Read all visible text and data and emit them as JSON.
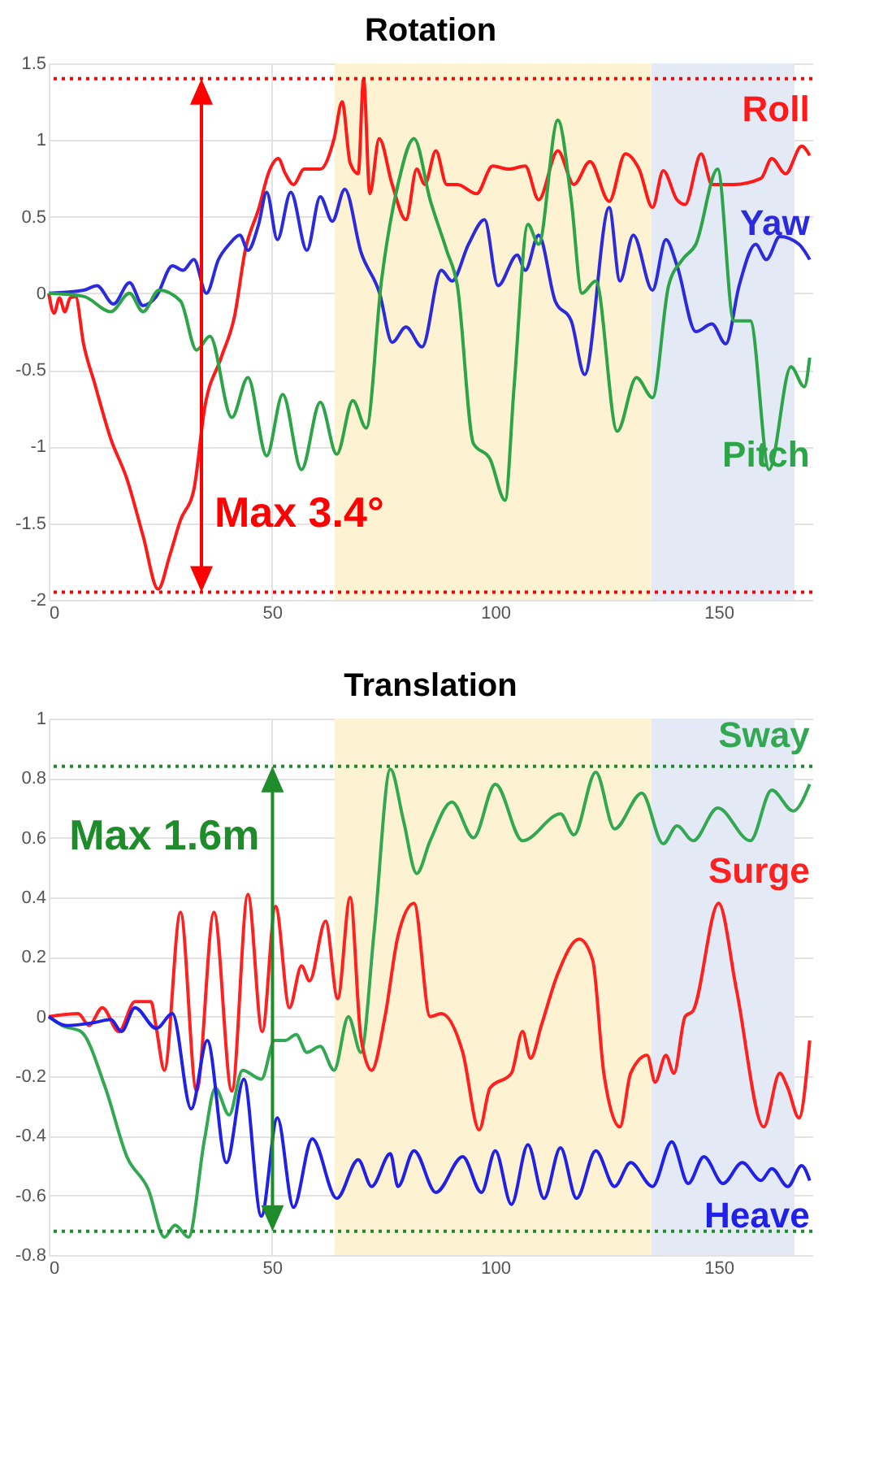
{
  "chart_data": [
    {
      "type": "line",
      "title": "Rotation",
      "xlim": [
        0,
        171
      ],
      "xticks": [
        0,
        50,
        100,
        150
      ],
      "ylim": [
        -2,
        1.5
      ],
      "yticks": [
        -2,
        -1.5,
        -1,
        -0.5,
        0,
        0.5,
        1,
        1.5
      ],
      "grid": true,
      "bands": [
        {
          "axis": "x",
          "from": 64,
          "to": 135,
          "color": "#fdf2d2"
        },
        {
          "axis": "x",
          "from": 135,
          "to": 167,
          "color": "#e3e9f5"
        }
      ],
      "ref_lines": [
        {
          "axis": "y",
          "value": 1.4,
          "color": "#ff0000",
          "line_style": "dotted"
        },
        {
          "axis": "y",
          "value": -1.95,
          "color": "#ff0000",
          "line_style": "dotted"
        }
      ],
      "annotations": [
        "Max 3.4°"
      ],
      "series": [
        {
          "name": "Roll",
          "color": "#ff1a1a",
          "x": [
            0,
            1.2,
            2.4,
            3.6,
            4.8,
            6,
            7.8,
            10.2,
            13.9,
            17.5,
            21.1,
            24.5,
            27.1,
            29.5,
            32.5,
            34.9,
            38.6,
            41.6,
            44,
            47,
            49.4,
            51.4,
            53,
            54.8,
            57.2,
            60.8,
            63.9,
            65.7,
            67.5,
            69.3,
            70.5,
            71.9,
            74,
            76.9,
            80,
            82.4,
            84.2,
            86.7,
            89.1,
            91.5,
            95.8,
            99.4,
            103,
            106.7,
            109.7,
            114,
            117.6,
            121.2,
            125.5,
            129.1,
            132.2,
            135.2,
            137.6,
            140.7,
            142.5,
            146.1,
            148.5,
            153.4,
            159.5,
            161.9,
            165,
            168.6,
            170.4
          ],
          "values": [
            0,
            -0.13,
            -0.03,
            -0.12,
            -0.03,
            -0.02,
            -0.33,
            -0.58,
            -0.95,
            -1.21,
            -1.58,
            -1.93,
            -1.71,
            -1.48,
            -1.28,
            -0.75,
            -0.42,
            -0.15,
            0.28,
            0.55,
            0.8,
            0.88,
            0.78,
            0.71,
            0.81,
            0.81,
            1.01,
            1.25,
            0.85,
            0.78,
            1.4,
            0.65,
            1.01,
            0.71,
            0.48,
            0.81,
            0.71,
            0.93,
            0.71,
            0.71,
            0.65,
            0.83,
            0.81,
            0.83,
            0.61,
            0.93,
            0.71,
            0.86,
            0.6,
            0.91,
            0.81,
            0.56,
            0.8,
            0.61,
            0.58,
            0.91,
            0.71,
            0.71,
            0.75,
            0.88,
            0.78,
            0.96,
            0.9
          ]
        },
        {
          "name": "Yaw",
          "color": "#2b2bdd",
          "x": [
            0,
            7.8,
            10.8,
            14.5,
            18.1,
            21.1,
            24.1,
            27.7,
            30.1,
            32.5,
            35.3,
            38,
            40.4,
            42.8,
            44.6,
            47,
            48.8,
            51.2,
            54.2,
            57.8,
            60.8,
            63.5,
            66.3,
            69.9,
            74.1,
            76.9,
            80,
            83.6,
            87.9,
            90.3,
            94,
            97.6,
            100.6,
            104.9,
            106.7,
            109.7,
            113.4,
            117,
            120,
            125.5,
            127.9,
            130.9,
            135.2,
            138.2,
            140.7,
            144.9,
            148.5,
            151.6,
            154.6,
            158.3,
            160.7,
            163.7,
            168,
            170.4
          ],
          "values": [
            0,
            0.02,
            0.05,
            -0.07,
            0.07,
            -0.08,
            -0.02,
            0.18,
            0.15,
            0.22,
            0,
            0.22,
            0.32,
            0.38,
            0.28,
            0.45,
            0.66,
            0.35,
            0.66,
            0.28,
            0.63,
            0.47,
            0.68,
            0.27,
            0,
            -0.32,
            -0.22,
            -0.35,
            0.15,
            0.08,
            0.32,
            0.48,
            0.05,
            0.25,
            0.15,
            0.38,
            -0.05,
            -0.18,
            -0.53,
            0.56,
            0.08,
            0.38,
            0.02,
            0.35,
            0.18,
            -0.25,
            -0.2,
            -0.33,
            0.05,
            0.32,
            0.22,
            0.37,
            0.32,
            0.22
          ]
        },
        {
          "name": "Pitch",
          "color": "#2ca448",
          "x": [
            0,
            7.8,
            13.9,
            18.1,
            21.1,
            24.7,
            29.5,
            33.1,
            36.1,
            41,
            44.6,
            48.8,
            52.4,
            56.6,
            60.8,
            64.5,
            68.1,
            71.1,
            74.5,
            78.2,
            81.8,
            85.4,
            89.1,
            91.5,
            95.1,
            98.8,
            102.2,
            104.2,
            107.3,
            109.7,
            114,
            117,
            119.4,
            122.5,
            127.3,
            131.6,
            135.2,
            138.8,
            141.9,
            144.9,
            149.8,
            153.4,
            157.1,
            161.3,
            166.2,
            169.2,
            170.4
          ],
          "values": [
            0,
            -0.02,
            -0.12,
            0,
            -0.12,
            0.02,
            -0.05,
            -0.37,
            -0.28,
            -0.81,
            -0.55,
            -1.06,
            -0.66,
            -1.15,
            -0.71,
            -1.05,
            -0.7,
            -0.88,
            0.08,
            0.71,
            1.01,
            0.61,
            0.28,
            0.05,
            -0.98,
            -1.08,
            -1.35,
            -0.61,
            0.45,
            0.32,
            1.13,
            0.61,
            0,
            0.08,
            -0.9,
            -0.55,
            -0.68,
            0.05,
            0.22,
            0.32,
            0.81,
            -0.18,
            -0.18,
            -1.15,
            -0.48,
            -0.61,
            -0.42
          ]
        }
      ]
    },
    {
      "type": "line",
      "title": "Translation",
      "xlim": [
        0,
        171
      ],
      "xticks": [
        0,
        50,
        100,
        150
      ],
      "ylim": [
        -0.8,
        1
      ],
      "yticks": [
        -0.8,
        -0.6,
        -0.4,
        -0.2,
        0,
        0.2,
        0.4,
        0.6,
        0.8,
        1
      ],
      "grid": true,
      "bands": [
        {
          "axis": "x",
          "from": 64,
          "to": 135,
          "color": "#fdf2d2"
        },
        {
          "axis": "x",
          "from": 135,
          "to": 167,
          "color": "#e3e9f5"
        }
      ],
      "ref_lines": [
        {
          "axis": "y",
          "value": 0.84,
          "color": "#1e8c2a",
          "line_style": "dotted"
        },
        {
          "axis": "y",
          "value": -0.72,
          "color": "#1e8c2a",
          "line_style": "dotted"
        }
      ],
      "annotations": [
        "Max 1.6m"
      ],
      "series": [
        {
          "name": "Sway",
          "color": "#33a853",
          "x": [
            0,
            3,
            7.2,
            12.7,
            17.5,
            22.3,
            25.9,
            28.3,
            31.3,
            34.9,
            37.3,
            40.4,
            43.4,
            47.6,
            50.6,
            53,
            55.4,
            57.8,
            60.8,
            63.9,
            67.1,
            69.9,
            72.9,
            76.5,
            79.4,
            82.4,
            85.4,
            90.3,
            95.1,
            100,
            106.1,
            114.6,
            117.6,
            122.5,
            126.7,
            132.8,
            137.6,
            140.7,
            144.3,
            149.8,
            157.1,
            161.9,
            166.7,
            170.4
          ],
          "values": [
            0,
            -0.03,
            -0.05,
            -0.24,
            -0.47,
            -0.58,
            -0.74,
            -0.7,
            -0.74,
            -0.41,
            -0.24,
            -0.33,
            -0.18,
            -0.21,
            -0.08,
            -0.08,
            -0.06,
            -0.12,
            -0.1,
            -0.18,
            0,
            -0.12,
            0.29,
            0.83,
            0.66,
            0.48,
            0.59,
            0.72,
            0.6,
            0.78,
            0.59,
            0.68,
            0.61,
            0.82,
            0.63,
            0.75,
            0.58,
            0.64,
            0.59,
            0.7,
            0.59,
            0.76,
            0.69,
            0.78
          ]
        },
        {
          "name": "Surge",
          "color": "#ff2020",
          "x": [
            0,
            6.6,
            9,
            12,
            15.7,
            19.3,
            22.9,
            24.1,
            25.9,
            29.5,
            33.1,
            37,
            41,
            44.6,
            47.8,
            50.8,
            53.9,
            56.6,
            58.4,
            62,
            64.7,
            67.5,
            69.9,
            72.3,
            75.3,
            78.2,
            81.8,
            85.4,
            87.9,
            92.7,
            96.4,
            98.8,
            103.6,
            106.1,
            107.9,
            110.3,
            113.9,
            118.8,
            121.8,
            124.3,
            127.9,
            130.3,
            134,
            135.8,
            138.2,
            140,
            142.5,
            144.3,
            150,
            154,
            160.1,
            163.7,
            165.5,
            168,
            170.4
          ],
          "values": [
            0,
            0.01,
            -0.03,
            0.03,
            -0.05,
            0.05,
            0.05,
            -0.04,
            -0.18,
            0.35,
            -0.25,
            0.35,
            -0.25,
            0.41,
            -0.05,
            0.37,
            0.03,
            0.17,
            0.12,
            0.32,
            0.06,
            0.4,
            -0.07,
            -0.18,
            0,
            0.27,
            0.38,
            0,
            0.01,
            -0.12,
            -0.38,
            -0.24,
            -0.19,
            -0.05,
            -0.14,
            -0.03,
            0.14,
            0.26,
            0.19,
            -0.19,
            -0.37,
            -0.19,
            -0.13,
            -0.22,
            -0.13,
            -0.19,
            0,
            0.02,
            0.38,
            0.09,
            -0.37,
            -0.19,
            -0.24,
            -0.34,
            -0.08
          ]
        },
        {
          "name": "Heave",
          "color": "#2020e6",
          "x": [
            0,
            4.2,
            10.2,
            13.9,
            16.3,
            19.3,
            24.1,
            27.7,
            31.9,
            35.5,
            39.8,
            43.7,
            47.6,
            51.2,
            54.8,
            59,
            64.5,
            69.3,
            72.3,
            76.5,
            78.2,
            81.8,
            86.7,
            92.7,
            96.9,
            100,
            103.6,
            107.3,
            110.9,
            114.6,
            118.2,
            122.5,
            126.7,
            130.3,
            135.2,
            139.5,
            143.2,
            146.7,
            151,
            155.3,
            159.5,
            161.9,
            165.5,
            168.6,
            170.4
          ],
          "values": [
            0,
            -0.03,
            -0.02,
            -0.01,
            -0.05,
            0.03,
            -0.04,
            0.01,
            -0.31,
            -0.08,
            -0.49,
            -0.21,
            -0.67,
            -0.34,
            -0.64,
            -0.41,
            -0.61,
            -0.48,
            -0.57,
            -0.46,
            -0.57,
            -0.45,
            -0.59,
            -0.47,
            -0.59,
            -0.45,
            -0.63,
            -0.43,
            -0.61,
            -0.44,
            -0.61,
            -0.45,
            -0.57,
            -0.49,
            -0.57,
            -0.42,
            -0.56,
            -0.47,
            -0.56,
            -0.49,
            -0.55,
            -0.51,
            -0.57,
            -0.5,
            -0.55
          ]
        }
      ]
    }
  ]
}
